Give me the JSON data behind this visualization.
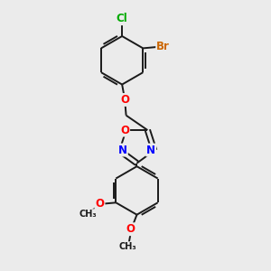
{
  "background_color": "#ebebeb",
  "bond_color": "#1a1a1a",
  "atom_colors": {
    "O": "#ff0000",
    "N": "#0000ff",
    "Cl": "#00aa00",
    "Br": "#cc6600"
  },
  "font_size_atom": 8.5,
  "fig_size": [
    3.0,
    3.0
  ],
  "dpi": 100
}
